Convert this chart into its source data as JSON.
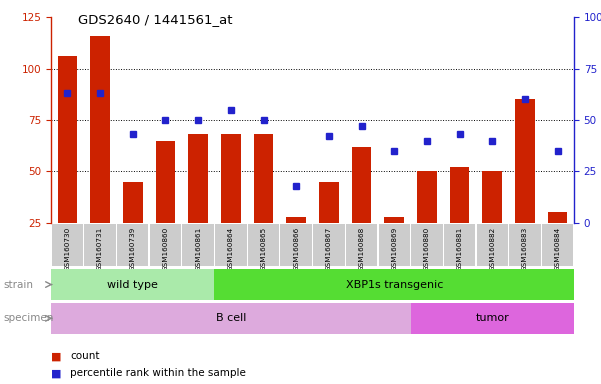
{
  "title": "GDS2640 / 1441561_at",
  "samples": [
    "GSM160730",
    "GSM160731",
    "GSM160739",
    "GSM160860",
    "GSM160861",
    "GSM160864",
    "GSM160865",
    "GSM160866",
    "GSM160867",
    "GSM160868",
    "GSM160869",
    "GSM160880",
    "GSM160881",
    "GSM160882",
    "GSM160883",
    "GSM160884"
  ],
  "counts": [
    106,
    116,
    45,
    65,
    68,
    68,
    68,
    28,
    45,
    62,
    28,
    50,
    52,
    50,
    85,
    30
  ],
  "percentiles": [
    63,
    63,
    43,
    50,
    50,
    55,
    50,
    18,
    42,
    47,
    35,
    40,
    43,
    40,
    60,
    35
  ],
  "left_ylim": [
    25,
    125
  ],
  "left_yticks": [
    25,
    50,
    75,
    100,
    125
  ],
  "right_ylim": [
    0,
    100
  ],
  "right_yticks": [
    0,
    25,
    50,
    75,
    100
  ],
  "right_yticklabels": [
    "0",
    "25",
    "50",
    "75",
    "100%"
  ],
  "bar_color": "#cc2200",
  "dot_color": "#2222cc",
  "strain_groups": [
    {
      "label": "wild type",
      "start": 0,
      "end": 4,
      "color": "#aaeaaa"
    },
    {
      "label": "XBP1s transgenic",
      "start": 5,
      "end": 15,
      "color": "#55dd33"
    }
  ],
  "specimen_groups": [
    {
      "label": "B cell",
      "start": 0,
      "end": 10,
      "color": "#ddaadd"
    },
    {
      "label": "tumor",
      "start": 11,
      "end": 15,
      "color": "#dd66dd"
    }
  ],
  "strain_label": "strain",
  "specimen_label": "specimen",
  "legend_count_label": "count",
  "legend_pct_label": "percentile rank within the sample"
}
